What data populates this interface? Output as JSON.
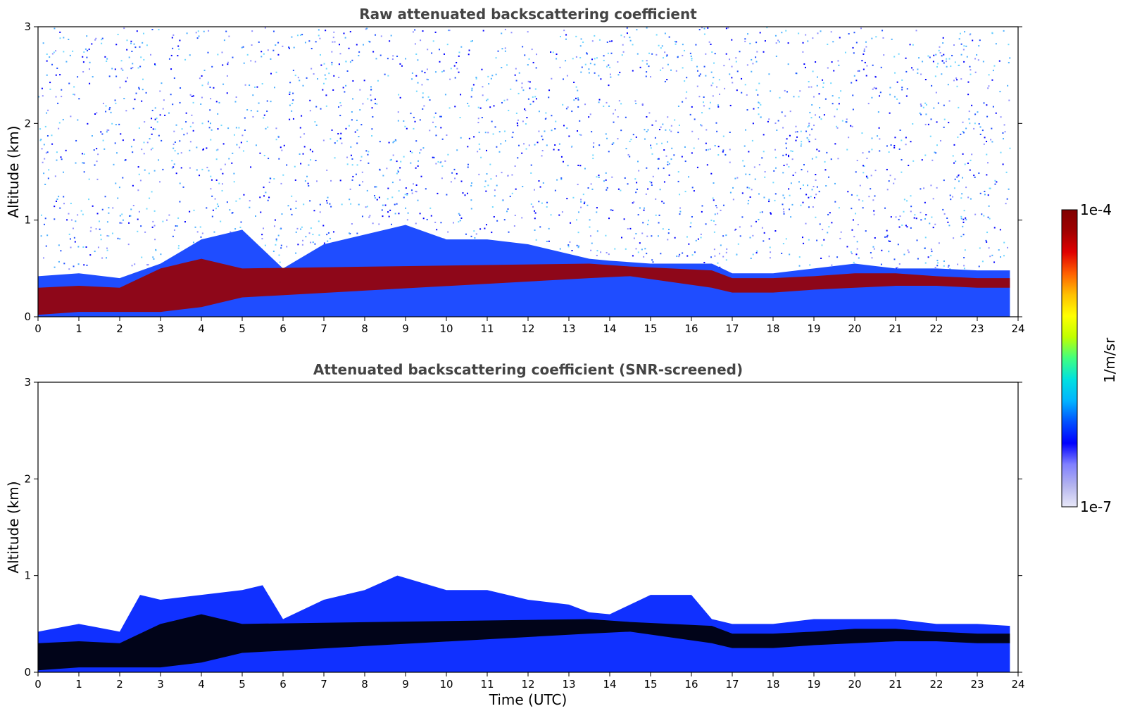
{
  "chart_data": [
    {
      "type": "heatmap",
      "title": "Raw attenuated backscattering coefficient",
      "xlabel": "",
      "ylabel": "Altitude (km)",
      "xlim": [
        0,
        24
      ],
      "ylim": [
        0,
        3
      ],
      "x_ticks": [
        "0",
        "1",
        "2",
        "3",
        "4",
        "5",
        "6",
        "7",
        "8",
        "9",
        "10",
        "11",
        "12",
        "13",
        "14",
        "15",
        "16",
        "17",
        "18",
        "19",
        "20",
        "21",
        "22",
        "23",
        "24"
      ],
      "y_ticks": [
        "0",
        "1",
        "2",
        "3"
      ],
      "layer_top_km": {
        "x": [
          0,
          1,
          2,
          3,
          4,
          5,
          6,
          7,
          8,
          9,
          10,
          11,
          12,
          13,
          13.5,
          14,
          15,
          16,
          16.5,
          17,
          18,
          19,
          20,
          21,
          22,
          23,
          23.8
        ],
        "y": [
          0.42,
          0.45,
          0.4,
          0.55,
          0.8,
          0.9,
          0.5,
          0.75,
          0.85,
          0.95,
          0.8,
          0.8,
          0.75,
          0.65,
          0.6,
          0.58,
          0.55,
          0.55,
          0.55,
          0.45,
          0.45,
          0.5,
          0.55,
          0.5,
          0.5,
          0.48,
          0.48
        ]
      },
      "dense_layer_km": {
        "x": [
          0,
          1,
          2,
          3,
          4,
          5,
          13.5,
          14.5,
          16.5,
          17,
          18,
          19,
          20,
          21,
          22,
          23,
          23.8
        ],
        "bottom": [
          0.02,
          0.05,
          0.05,
          0.05,
          0.1,
          0.2,
          0.4,
          0.42,
          0.3,
          0.25,
          0.25,
          0.28,
          0.3,
          0.32,
          0.32,
          0.3,
          0.3
        ],
        "top": [
          0.3,
          0.32,
          0.3,
          0.5,
          0.6,
          0.5,
          0.55,
          0.52,
          0.48,
          0.4,
          0.4,
          0.42,
          0.45,
          0.45,
          0.42,
          0.4,
          0.4
        ]
      }
    },
    {
      "type": "heatmap",
      "title": "Attenuated backscattering coefficient (SNR-screened)",
      "xlabel": "Time (UTC)",
      "ylabel": "Altitude (km)",
      "xlim": [
        0,
        24
      ],
      "ylim": [
        0,
        3
      ],
      "x_ticks": [
        "0",
        "1",
        "2",
        "3",
        "4",
        "5",
        "6",
        "7",
        "8",
        "9",
        "10",
        "11",
        "12",
        "13",
        "14",
        "15",
        "16",
        "17",
        "18",
        "19",
        "20",
        "21",
        "22",
        "23",
        "24"
      ],
      "y_ticks": [
        "0",
        "1",
        "2",
        "3"
      ],
      "layer_top_km": {
        "x": [
          0,
          1,
          2,
          2.5,
          3,
          4,
          5,
          5.5,
          6,
          7,
          8,
          8.8,
          10,
          11,
          12,
          13,
          13.5,
          14,
          15,
          16,
          16.5,
          17,
          18,
          19,
          20,
          21,
          22,
          23,
          23.8
        ],
        "y": [
          0.42,
          0.5,
          0.42,
          0.8,
          0.75,
          0.8,
          0.85,
          0.9,
          0.55,
          0.75,
          0.85,
          1.0,
          0.85,
          0.85,
          0.75,
          0.7,
          0.62,
          0.6,
          0.8,
          0.8,
          0.55,
          0.5,
          0.5,
          0.55,
          0.55,
          0.55,
          0.5,
          0.5,
          0.48
        ]
      },
      "dense_layer_km": {
        "x": [
          0,
          1,
          2,
          3,
          4,
          5,
          13.5,
          14.5,
          16.5,
          17,
          18,
          19,
          20,
          21,
          22,
          23,
          23.8
        ],
        "bottom": [
          0.02,
          0.05,
          0.05,
          0.05,
          0.1,
          0.2,
          0.4,
          0.42,
          0.3,
          0.25,
          0.25,
          0.28,
          0.3,
          0.32,
          0.32,
          0.3,
          0.3
        ],
        "top": [
          0.3,
          0.32,
          0.3,
          0.5,
          0.6,
          0.5,
          0.55,
          0.52,
          0.48,
          0.4,
          0.4,
          0.42,
          0.45,
          0.45,
          0.42,
          0.4,
          0.4
        ]
      }
    }
  ],
  "colorbar": {
    "max_label": "1e-4",
    "min_label": "1e-7",
    "unit_label": "1/m/sr",
    "colors": [
      "#e8e8f8",
      "#b4b4ee",
      "#8080ff",
      "#0000ff",
      "#0050ff",
      "#00b4ff",
      "#00e0e0",
      "#40ff80",
      "#c0ff00",
      "#ffff00",
      "#ffc000",
      "#ff6000",
      "#e00000",
      "#a00000",
      "#800000"
    ]
  }
}
